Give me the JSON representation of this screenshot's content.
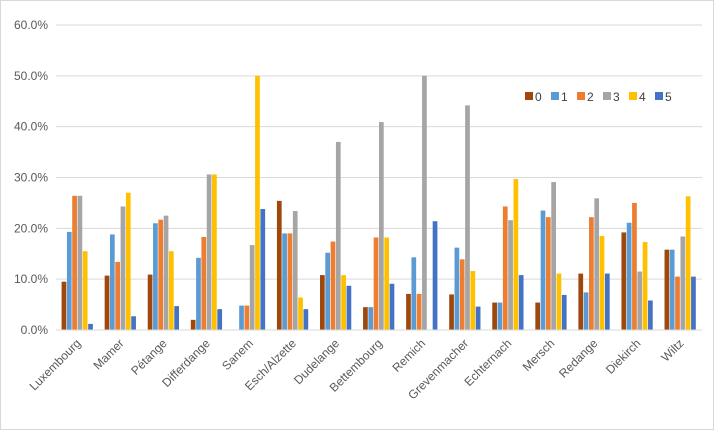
{
  "chart_data": {
    "type": "bar",
    "title": "",
    "xlabel": "",
    "ylabel": "",
    "ylim": [
      0,
      0.6
    ],
    "y_tick_format": "percent_1dp",
    "y_ticks": [
      "0.0%",
      "10.0%",
      "20.0%",
      "30.0%",
      "40.0%",
      "50.0%",
      "60.0%"
    ],
    "grid": true,
    "legend_position": "right",
    "categories": [
      "Luxembourg",
      "Mamer",
      "Pétange",
      "Differdange",
      "Sanem",
      "Esch/Alzette",
      "Dudelange",
      "Bettembourg",
      "Remich",
      "Grevenmacher",
      "Echternach",
      "Mersch",
      "Redange",
      "Diekirch",
      "Wiltz"
    ],
    "series": [
      {
        "name": "0",
        "color": "#9E480E",
        "values": [
          0.095,
          0.107,
          0.109,
          0.02,
          0.0,
          0.254,
          0.108,
          0.045,
          0.071,
          0.07,
          0.054,
          0.054,
          0.111,
          0.192,
          0.158
        ]
      },
      {
        "name": "1",
        "color": "#5B9BD5",
        "values": [
          0.193,
          0.188,
          0.21,
          0.142,
          0.048,
          0.19,
          0.152,
          0.045,
          0.143,
          0.162,
          0.054,
          0.235,
          0.074,
          0.211,
          0.158
        ]
      },
      {
        "name": "2",
        "color": "#ED7D31",
        "values": [
          0.264,
          0.134,
          0.217,
          0.183,
          0.048,
          0.19,
          0.174,
          0.182,
          0.071,
          0.139,
          0.243,
          0.222,
          0.222,
          0.25,
          0.105
        ]
      },
      {
        "name": "3",
        "color": "#A5A5A5",
        "values": [
          0.264,
          0.243,
          0.225,
          0.306,
          0.167,
          0.234,
          0.37,
          0.409,
          0.5,
          0.442,
          0.216,
          0.291,
          0.259,
          0.115,
          0.184
        ]
      },
      {
        "name": "4",
        "color": "#FFC000",
        "values": [
          0.155,
          0.27,
          0.155,
          0.306,
          0.5,
          0.064,
          0.108,
          0.182,
          0.0,
          0.116,
          0.297,
          0.111,
          0.185,
          0.173,
          0.263
        ]
      },
      {
        "name": "5",
        "color": "#4472C4",
        "values": [
          0.012,
          0.027,
          0.047,
          0.041,
          0.238,
          0.041,
          0.087,
          0.091,
          0.214,
          0.046,
          0.108,
          0.069,
          0.111,
          0.058,
          0.105
        ]
      }
    ]
  }
}
